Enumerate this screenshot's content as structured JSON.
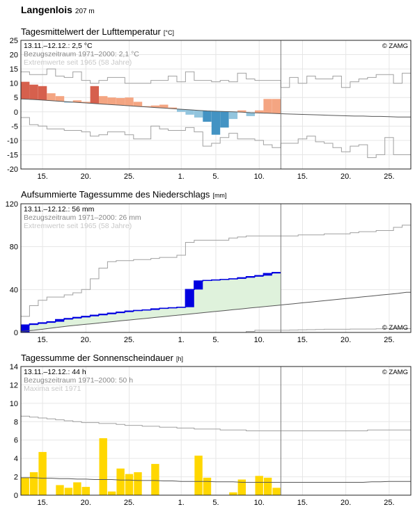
{
  "station": {
    "name": "Langenlois",
    "altitude": "207 m"
  },
  "copyright": "© ZAMG",
  "x_axis": {
    "days": 45,
    "ticks": [
      {
        "day": 3,
        "label": "15."
      },
      {
        "day": 8,
        "label": "20."
      },
      {
        "day": 13,
        "label": "25."
      },
      {
        "day": 19,
        "label": "1."
      },
      {
        "day": 23,
        "label": "5."
      },
      {
        "day": 28,
        "label": "10."
      },
      {
        "day": 33,
        "label": "15."
      },
      {
        "day": 38,
        "label": "20."
      },
      {
        "day": 43,
        "label": "25."
      }
    ],
    "current_day_marker": 30
  },
  "temperature": {
    "title": "Tagesmittelwert der Lufttemperatur",
    "unit": "[°C]",
    "line1": "13.11.–12.12.: 2,5 °C",
    "line2": "Bezugszeitraum 1971–2000: 2,1 °C",
    "line3": "Extremwerte seit 1965 (58 Jahre)",
    "yticks": [
      25,
      20,
      15,
      10,
      5,
      0,
      -5,
      -10,
      -15,
      -20
    ],
    "ylim": [
      -20,
      25
    ],
    "colors": {
      "warm": "#f4a582",
      "warm_extreme": "#d6604d",
      "cold": "#92c5de",
      "cold_extreme": "#4393c3"
    },
    "chart_data": {
      "type": "bar",
      "x_day_start": 1,
      "values": [
        10.5,
        9.5,
        9,
        6.5,
        5.5,
        3.2,
        4,
        3.5,
        9,
        5.5,
        5,
        4.8,
        5,
        3.5,
        2,
        2.2,
        2.5,
        1.5,
        0,
        -1,
        -2,
        -3.5,
        -8,
        -5.5,
        -2.5,
        0.5,
        -1.5,
        0.5,
        4.5,
        4.5
      ],
      "extreme_flags": [
        1,
        1,
        1,
        0,
        0,
        0,
        0,
        0,
        1,
        0,
        0,
        0,
        0,
        0,
        0,
        0,
        0,
        0,
        0,
        0,
        0,
        1,
        1,
        1,
        0,
        0,
        0,
        0,
        0,
        0
      ],
      "climatology": [
        4.5,
        4.3,
        4.1,
        3.9,
        3.7,
        3.5,
        3.3,
        3.1,
        2.9,
        2.7,
        2.5,
        2.3,
        2.1,
        1.9,
        1.7,
        1.5,
        1.3,
        1.1,
        0.9,
        0.7,
        0.5,
        0.3,
        0.2,
        0.1,
        0,
        -0.1,
        -0.3,
        -0.4,
        -0.5,
        -0.6,
        -0.7,
        -0.8,
        -0.9,
        -1.0,
        -1.1,
        -1.2,
        -1.3,
        -1.4,
        -1.5,
        -1.5,
        -1.6,
        -1.6,
        -1.7,
        -1.8,
        -1.8
      ],
      "max_extreme": [
        14,
        13,
        13,
        15,
        12.5,
        12,
        14,
        11,
        10,
        11,
        12,
        12,
        10,
        10,
        10,
        11,
        11,
        12.5,
        10.5,
        14,
        11,
        11,
        10.5,
        11,
        10.5,
        13.5,
        11.5,
        11,
        11,
        11,
        8.5,
        12,
        10,
        12.5,
        11.5,
        11.5,
        12.5,
        8.5,
        10.5,
        11.5,
        12,
        13,
        13,
        10,
        13.5
      ],
      "min_extreme": [
        -2,
        -4.5,
        -5,
        -6,
        -6,
        -6.5,
        -6.5,
        -7,
        -8.5,
        -8,
        -7,
        -7,
        -8,
        -9.5,
        -9.5,
        -5,
        -6,
        -6.5,
        -6.5,
        -5.5,
        -7,
        -12,
        -11,
        -9,
        -7.5,
        -9.5,
        -9.5,
        -10,
        -11.5,
        -12.5,
        -11,
        -11,
        -9.5,
        -8.5,
        -10.5,
        -11,
        -12.5,
        -14,
        -12,
        -11.5,
        -16,
        -15,
        -9,
        -15,
        -15
      ],
      "ylim": [
        -20,
        25
      ]
    }
  },
  "precipitation": {
    "title": "Aufsummierte Tagessumme des Niederschlags",
    "unit": "[mm]",
    "line1": "13.11.–12.12.: 56 mm",
    "line2": "Bezugszeitraum 1971–2000: 26 mm",
    "line3": "Extremwerte seit 1965 (58 Jahre)",
    "yticks": [
      120,
      80,
      40,
      0
    ],
    "ylim": [
      0,
      120
    ],
    "colors": {
      "observed": "#0000e0",
      "normal_fill": "#dff2dc"
    },
    "chart_data": {
      "type": "area",
      "x_day_start": 1,
      "cumulative": [
        7,
        8,
        9,
        10,
        12,
        13,
        14,
        15,
        16,
        17,
        18,
        19,
        20,
        20.5,
        21,
        22,
        22.5,
        23,
        23.5,
        40,
        48,
        48.5,
        49,
        49.5,
        50,
        51,
        52,
        53,
        55,
        56
      ],
      "climatology": [
        1,
        2,
        3,
        4,
        5,
        6,
        6.8,
        7.6,
        8.4,
        9.2,
        10,
        10.8,
        11.6,
        12.4,
        13.2,
        14,
        14.8,
        15.6,
        16.4,
        17.2,
        18,
        18.8,
        19.6,
        20.4,
        21.2,
        22,
        22.8,
        23.6,
        24.4,
        25.2,
        26,
        26.8,
        27.6,
        28.4,
        29.2,
        30,
        30.8,
        31.6,
        32.4,
        33.2,
        34,
        34.8,
        35.6,
        36.4,
        37.5
      ],
      "max_extreme": [
        15,
        25,
        30,
        33,
        33,
        35,
        37,
        40,
        50,
        60,
        66,
        67,
        67,
        68,
        68,
        69,
        70,
        70,
        72,
        84,
        86,
        86,
        86,
        86,
        88,
        89,
        90,
        90,
        90,
        90,
        90,
        90,
        91,
        91,
        91,
        92,
        92,
        92,
        93,
        94,
        94,
        95,
        95,
        98,
        100
      ],
      "min_extreme": [
        0,
        0,
        0,
        0,
        0,
        0,
        0,
        0,
        0,
        0,
        0,
        0,
        0,
        0,
        0,
        0,
        0,
        0,
        0,
        0,
        0,
        0,
        0,
        0,
        0,
        0,
        1,
        2,
        2,
        2,
        2,
        2.2,
        2.4,
        2.6,
        2.8,
        3,
        3,
        3,
        3.2,
        3.2,
        3.2,
        3.4,
        3.5,
        3.5,
        3.5
      ],
      "ylim": [
        0,
        120
      ]
    }
  },
  "sunshine": {
    "title": "Tagessumme der Sonnenscheindauer",
    "unit": "[h]",
    "line1": "13.11.–12.12.: 44 h",
    "line2": "Bezugszeitraum 1971–2000: 50 h",
    "line3": "Maxima seit 1971",
    "yticks": [
      14,
      12,
      10,
      8,
      6,
      4,
      2,
      0
    ],
    "ylim": [
      0,
      14
    ],
    "colors": {
      "bar": "#ffd700"
    },
    "chart_data": {
      "type": "bar",
      "x_day_start": 1,
      "values": [
        1.9,
        2.5,
        4.7,
        0,
        1.1,
        0.8,
        1.4,
        0.9,
        0,
        6.2,
        0.4,
        2.9,
        2.3,
        2.5,
        0,
        3.4,
        0,
        0,
        0,
        0,
        4.3,
        1.9,
        0,
        0,
        0.3,
        1.7,
        0,
        2.1,
        1.9,
        0.8
      ],
      "climatology": [
        1.9,
        1.9,
        1.85,
        1.85,
        1.8,
        1.8,
        1.75,
        1.75,
        1.7,
        1.7,
        1.7,
        1.65,
        1.65,
        1.6,
        1.6,
        1.6,
        1.55,
        1.55,
        1.5,
        1.5,
        1.5,
        1.5,
        1.45,
        1.45,
        1.45,
        1.4,
        1.4,
        1.4,
        1.4,
        1.4,
        1.4,
        1.4,
        1.4,
        1.4,
        1.4,
        1.4,
        1.4,
        1.4,
        1.4,
        1.4,
        1.45,
        1.45,
        1.5,
        1.5,
        1.5
      ],
      "max_extreme": [
        8.6,
        8.5,
        8.4,
        8.3,
        8.2,
        8.1,
        8.0,
        7.9,
        7.9,
        7.8,
        7.8,
        7.7,
        7.6,
        7.6,
        7.5,
        7.5,
        7.4,
        7.4,
        7.3,
        7.3,
        7.2,
        7.2,
        7.2,
        7.1,
        7.1,
        7.1,
        7.0,
        7.0,
        7.0,
        7.0,
        7.0,
        7.0,
        7.0,
        7.0,
        7.0,
        7.0,
        7.0,
        7.0,
        7.0,
        7.0,
        7.1,
        7.1,
        7.1,
        7.1,
        7.1
      ],
      "ylim": [
        0,
        14
      ]
    }
  }
}
